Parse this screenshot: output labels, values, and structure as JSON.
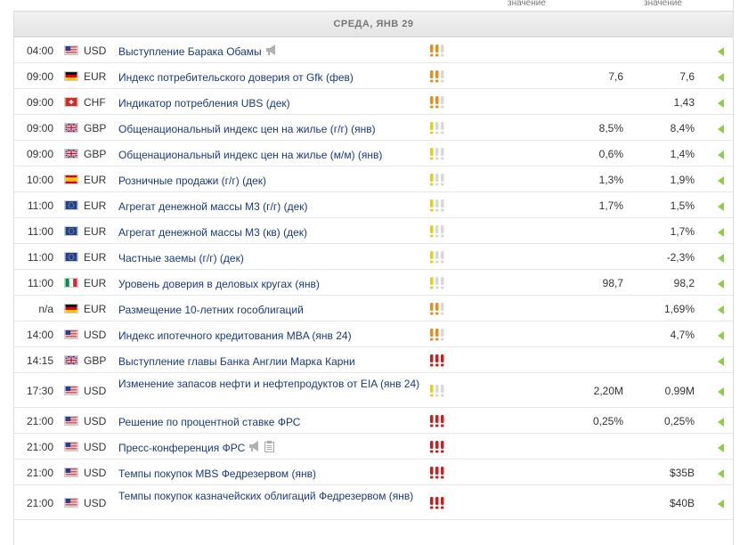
{
  "columns": {
    "actual_label": "значение",
    "prev_label": "значение"
  },
  "day_header": "СРЕДА, ЯНВ 29",
  "colors": {
    "event_link": "#1a3a78",
    "imp_low": "#e0d020",
    "imp_med": "#e09020",
    "imp_high": "#c82020",
    "imp_off": "#d8d8d8",
    "arrow": "#8fcc4a"
  },
  "events": [
    {
      "time": "04:00",
      "flag": "us-flag-icon",
      "currency": "USD",
      "event": "Выступление Барака Обамы",
      "speech": true,
      "doc": false,
      "importance": 2,
      "actual": "",
      "previous": ""
    },
    {
      "time": "09:00",
      "flag": "de-flag-icon",
      "currency": "EUR",
      "event": "Индекс потребительского доверия от Gfk (фев)",
      "importance": 2,
      "actual": "7,6",
      "previous": "7,6"
    },
    {
      "time": "09:00",
      "flag": "ch-flag-icon",
      "currency": "CHF",
      "event": "Индикатор потребления UBS (дек)",
      "importance": 2,
      "actual": "",
      "previous": "1,43"
    },
    {
      "time": "09:00",
      "flag": "gb-flag-icon",
      "currency": "GBP",
      "event": "Общенациональный индекс цен на жилье (г/г) (янв)",
      "importance": 1,
      "actual": "8,5%",
      "previous": "8,4%"
    },
    {
      "time": "09:00",
      "flag": "gb-flag-icon",
      "currency": "GBP",
      "event": "Общенациональный индекс цен на жилье (м/м) (янв)",
      "importance": 1,
      "actual": "0,6%",
      "previous": "1,4%"
    },
    {
      "time": "10:00",
      "flag": "es-flag-icon",
      "currency": "EUR",
      "event": "Розничные продажи (г/г) (дек)",
      "importance": 1,
      "actual": "1,3%",
      "previous": "1,9%"
    },
    {
      "time": "11:00",
      "flag": "eu-flag-icon",
      "currency": "EUR",
      "event": "Агрегат денежной массы М3 (г/г) (дек)",
      "importance": 1,
      "actual": "1,7%",
      "previous": "1,5%"
    },
    {
      "time": "11:00",
      "flag": "eu-flag-icon",
      "currency": "EUR",
      "event": "Агрегат денежной массы М3 (кв) (дек)",
      "importance": 1,
      "actual": "",
      "previous": "1,7%"
    },
    {
      "time": "11:00",
      "flag": "eu-flag-icon",
      "currency": "EUR",
      "event": "Частные заемы (г/г) (дек)",
      "importance": 1,
      "actual": "",
      "previous": "-2,3%"
    },
    {
      "time": "11:00",
      "flag": "it-flag-icon",
      "currency": "EUR",
      "event": "Уровень доверия в деловых кругах (янв)",
      "importance": 1,
      "actual": "98,7",
      "previous": "98,2"
    },
    {
      "time": "n/a",
      "flag": "de-flag-icon",
      "currency": "EUR",
      "event": "Размещение 10-летних гособлигаций",
      "importance": 2,
      "actual": "",
      "previous": "1,69%"
    },
    {
      "time": "14:00",
      "flag": "us-flag-icon",
      "currency": "USD",
      "event": "Индекс ипотечного кредитования MBA (янв 24)",
      "importance": 2,
      "actual": "",
      "previous": "4,7%"
    },
    {
      "time": "14:15",
      "flag": "gb-flag-icon",
      "currency": "GBP",
      "event": "Выступление главы Банка Англии Марка Карни",
      "importance": 3,
      "actual": "",
      "previous": ""
    },
    {
      "time": "17:30",
      "flag": "us-flag-icon",
      "currency": "USD",
      "event": "Изменение запасов нефти и нефтепродуктов от EIA (янв 24)",
      "importance": 1,
      "actual": "2,20M",
      "previous": "0,99M"
    },
    {
      "time": "21:00",
      "flag": "us-flag-icon",
      "currency": "USD",
      "event": "Решение по процентной ставке ФРС",
      "importance": 3,
      "actual": "0,25%",
      "previous": "0,25%"
    },
    {
      "time": "21:00",
      "flag": "us-flag-icon",
      "currency": "USD",
      "event": "Пресс-конференция ФРС",
      "speech": true,
      "doc": true,
      "importance": 3,
      "actual": "",
      "previous": ""
    },
    {
      "time": "21:00",
      "flag": "us-flag-icon",
      "currency": "USD",
      "event": "Темпы покупок MBS Федрезервом (янв)",
      "importance": 3,
      "actual": "",
      "previous": "$35B"
    },
    {
      "time": "21:00",
      "flag": "us-flag-icon",
      "currency": "USD",
      "event": "Темпы покупок казначейских облигаций Федрезервом (янв)",
      "importance": 3,
      "actual": "",
      "previous": "$40B"
    }
  ]
}
